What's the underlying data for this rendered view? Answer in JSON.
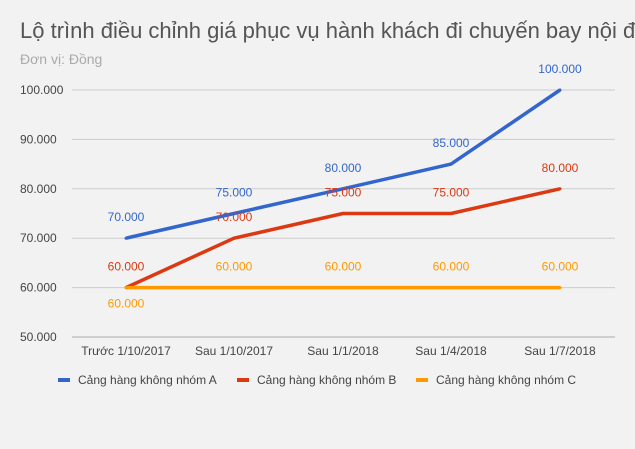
{
  "chart_data": {
    "type": "line",
    "title": "Lộ trình điều chỉnh giá phục vụ hành khách đi chuyến bay nội địa",
    "subtitle": "Đơn vị: Đồng",
    "categories": [
      "Trước 1/10/2017",
      "Sau 1/10/2017",
      "Sau 1/1/2018",
      "Sau 1/4/2018",
      "Sau 1/7/2018"
    ],
    "ylim": [
      50000,
      100000
    ],
    "yticks": [
      50000,
      60000,
      70000,
      80000,
      90000,
      100000
    ],
    "ytick_labels": [
      "50.000",
      "60.000",
      "70.000",
      "80.000",
      "90.000",
      "100.000"
    ],
    "grid": true,
    "legend": "bottom",
    "series": [
      {
        "name": "Cảng hàng không nhóm A",
        "color": "#3366cc",
        "values": [
          70000,
          75000,
          80000,
          85000,
          100000
        ],
        "labels": [
          "70.000",
          "75.000",
          "80.000",
          "85.000",
          "100.000"
        ]
      },
      {
        "name": "Cảng hàng không nhóm B",
        "color": "#dc3912",
        "values": [
          60000,
          70000,
          75000,
          75000,
          80000
        ],
        "labels": [
          "60.000",
          "70.000",
          "75.000",
          "75.000",
          "80.000"
        ]
      },
      {
        "name": "Cảng hàng không nhóm C",
        "color": "#ff9900",
        "values": [
          60000,
          60000,
          60000,
          60000,
          60000
        ],
        "labels": [
          "60.000",
          "60.000",
          "60.000",
          "60.000",
          "60.000"
        ]
      }
    ]
  }
}
